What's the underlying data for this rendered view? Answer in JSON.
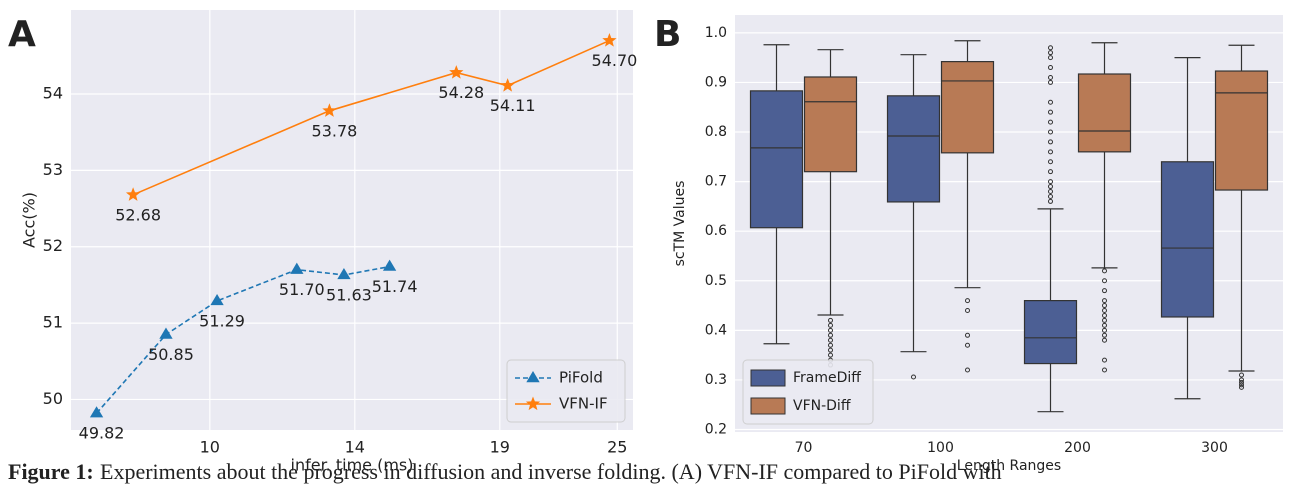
{
  "chart_data": [
    {
      "type": "line",
      "panel_label": "A",
      "xlabel": "infer. time (ms)",
      "ylabel": "Acc(%)",
      "xlim": [
        6.2,
        25.8
      ],
      "xticks": [
        10,
        14,
        19,
        25
      ],
      "ylim": [
        49.6,
        55.1
      ],
      "yticks": [
        50,
        51,
        52,
        53,
        54
      ],
      "grid": true,
      "legend": "lower right",
      "series": [
        {
          "name": "PiFold",
          "color": "#1f77b4",
          "linestyle": "--",
          "marker": "^",
          "x": [
            6.9,
            8.8,
            10.2,
            12.4,
            13.7,
            15.2
          ],
          "values": [
            49.82,
            50.85,
            51.29,
            51.7,
            51.63,
            51.74
          ],
          "value_labels": [
            "49.82",
            "50.85",
            "51.29",
            "51.70",
            "51.63",
            "51.74"
          ]
        },
        {
          "name": "VFN-IF",
          "color": "#ff7f0e",
          "linestyle": "-",
          "marker": "*",
          "x": [
            7.9,
            13.3,
            17.5,
            19.4,
            24.6
          ],
          "values": [
            52.68,
            53.78,
            54.28,
            54.11,
            54.7
          ],
          "value_labels": [
            "52.68",
            "53.78",
            "54.28",
            "54.11",
            "54.70"
          ]
        }
      ]
    },
    {
      "type": "box",
      "panel_label": "B",
      "xlabel": "Length Ranges",
      "ylabel": "scTM Values",
      "categories": [
        "70",
        "100",
        "200",
        "300"
      ],
      "ylim": [
        0.195,
        1.036
      ],
      "yticks": [
        0.2,
        0.3,
        0.4,
        0.5,
        0.6,
        0.7,
        0.8,
        0.9,
        {
          "value": 1,
          "label": "1.0"
        }
      ],
      "grid": true,
      "legend": "lower left",
      "series": [
        {
          "name": "FrameDiff",
          "color": "#4c5f94",
          "values": [
            {
              "min": 0.373,
              "q1": 0.607,
              "median": 0.768,
              "q3": 0.883,
              "max": 0.976,
              "outliers": []
            },
            {
              "min": 0.357,
              "q1": 0.659,
              "median": 0.792,
              "q3": 0.873,
              "max": 0.956,
              "outliers": [
                0.306
              ]
            },
            {
              "min": 0.236,
              "q1": 0.333,
              "median": 0.385,
              "q3": 0.46,
              "max": 0.645,
              "outliers": [
                0.97,
                0.96,
                0.95,
                0.93,
                0.91,
                0.9,
                0.86,
                0.84,
                0.82,
                0.8,
                0.78,
                0.76,
                0.74,
                0.72,
                0.7,
                0.69,
                0.68,
                0.67,
                0.66
              ]
            },
            {
              "min": 0.262,
              "q1": 0.427,
              "median": 0.566,
              "q3": 0.74,
              "max": 0.95,
              "outliers": []
            }
          ]
        },
        {
          "name": "VFN-Diff",
          "color": "#b87a55",
          "values": [
            {
              "min": 0.431,
              "q1": 0.72,
              "median": 0.861,
              "q3": 0.911,
              "max": 0.966,
              "outliers": [
                0.42,
                0.41,
                0.4,
                0.39,
                0.38,
                0.37,
                0.36,
                0.35,
                0.34,
                0.33
              ]
            },
            {
              "min": 0.486,
              "q1": 0.758,
              "median": 0.903,
              "q3": 0.942,
              "max": 0.984,
              "outliers": [
                0.46,
                0.44,
                0.39,
                0.37,
                0.32
              ]
            },
            {
              "min": 0.526,
              "q1": 0.76,
              "median": 0.802,
              "q3": 0.917,
              "max": 0.98,
              "outliers": [
                0.52,
                0.5,
                0.48,
                0.46,
                0.45,
                0.44,
                0.43,
                0.42,
                0.41,
                0.4,
                0.39,
                0.38,
                0.34,
                0.32
              ]
            },
            {
              "min": 0.318,
              "q1": 0.683,
              "median": 0.879,
              "q3": 0.923,
              "max": 0.975,
              "outliers": [
                0.31,
                0.3,
                0.295,
                0.29,
                0.285
              ]
            }
          ]
        }
      ]
    }
  ],
  "caption": {
    "label": "Figure 1:",
    "text": "Experiments about the progress in diffusion and inverse folding. (A) VFN-IF compared to PiFold with"
  }
}
